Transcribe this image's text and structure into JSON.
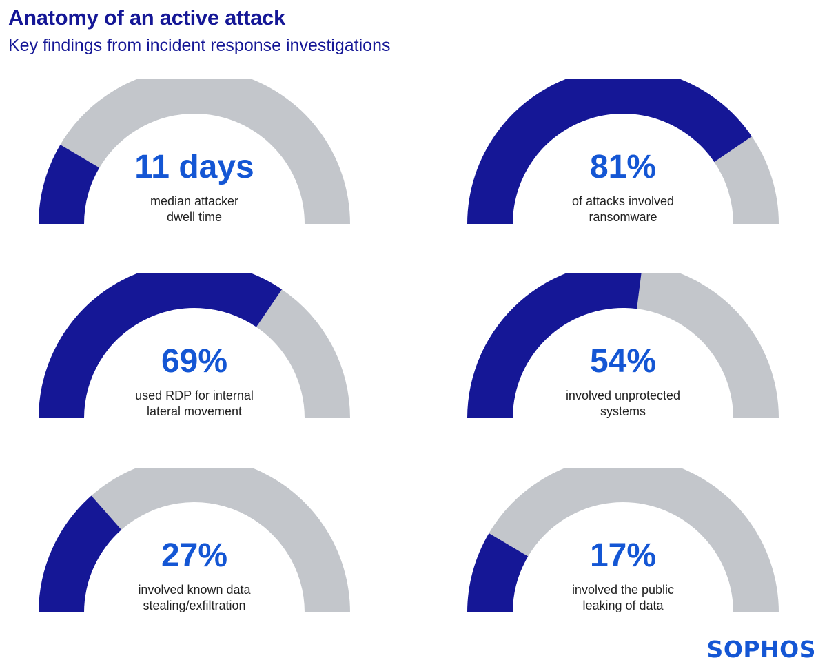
{
  "header": {
    "title": "Anatomy of an active attack",
    "subtitle": "Key findings from incident response investigations"
  },
  "colors": {
    "filled": "#151796",
    "track": "#c3c6cb",
    "value_text": "#1456d4",
    "label_text": "#222222"
  },
  "chart_data": [
    {
      "type": "gauge",
      "value_label": "11 days",
      "label_line1": "median attacker",
      "label_line2": "dwell time",
      "fill": 0.17
    },
    {
      "type": "gauge",
      "value_label": "81%",
      "label_line1": "of attacks involved",
      "label_line2": "ransomware",
      "fill": 0.81
    },
    {
      "type": "gauge",
      "value_label": "69%",
      "label_line1": "used RDP for internal",
      "label_line2": "lateral movement",
      "fill": 0.69
    },
    {
      "type": "gauge",
      "value_label": "54%",
      "label_line1": "involved unprotected",
      "label_line2": "systems",
      "fill": 0.54
    },
    {
      "type": "gauge",
      "value_label": "27%",
      "label_line1": "involved known data",
      "label_line2": "stealing/exfiltration",
      "fill": 0.27
    },
    {
      "type": "gauge",
      "value_label": "17%",
      "label_line1": "involved the public",
      "label_line2": "leaking of data",
      "fill": 0.17
    }
  ],
  "brand": {
    "logo_text": "SOPHOS"
  }
}
